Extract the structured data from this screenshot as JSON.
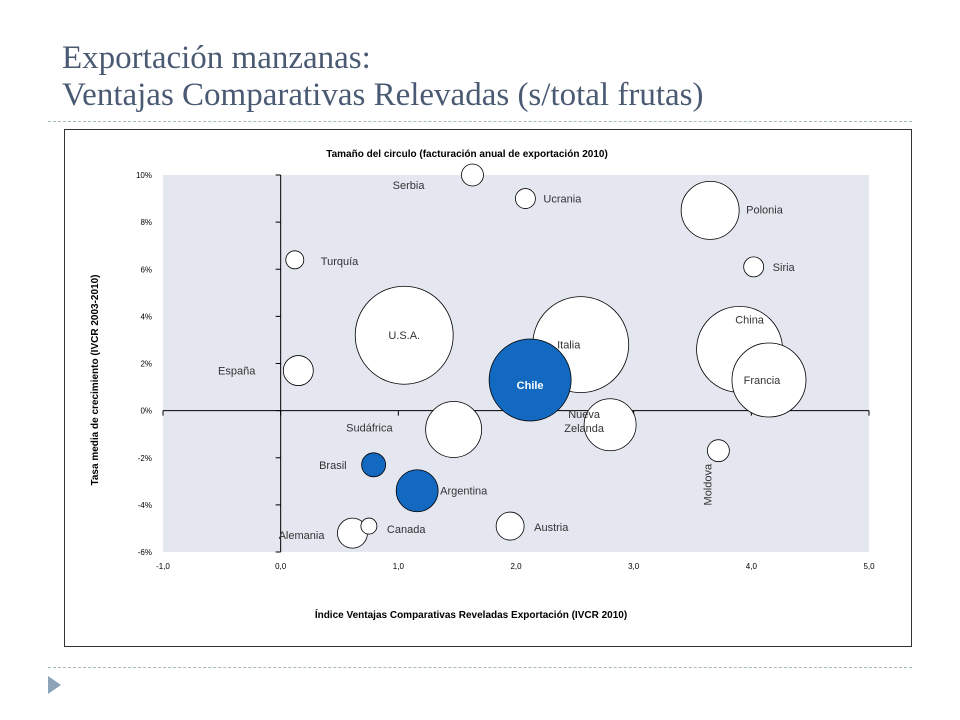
{
  "slide": {
    "title_line1": "Exportación manzanas:",
    "title_line2": "Ventajas Comparativas Relevadas (s/total frutas)"
  },
  "colors": {
    "title": "#4a5a73",
    "plot_background": "#e4e6f0",
    "bubble_default": "#ffffff",
    "bubble_highlight": "#1369c0",
    "divider": "#a8b8c0",
    "arrow": "#8ca3b8"
  },
  "chart_data": {
    "type": "scatter",
    "subtitle": "Tamaño del circulo (facturación anual de exportación 2010)",
    "xlabel": "Índice Ventajas Comparativas Reveladas Exportación (IVCR 2010)",
    "ylabel": "Tasa media de crecimiento  (IVCR 2003-2010)",
    "xlim": [
      -1,
      5
    ],
    "ylim": [
      -6,
      10
    ],
    "xticks": [
      -1,
      0,
      1,
      2,
      3,
      4,
      5
    ],
    "xtick_labels": [
      "-1,0",
      "0,0",
      "1,0",
      "2,0",
      "3,0",
      "4,0",
      "5,0"
    ],
    "yticks": [
      -6,
      -4,
      -2,
      0,
      2,
      4,
      6,
      8,
      10
    ],
    "ytick_labels": [
      "-6%",
      "-4%",
      "-2%",
      "0%",
      "2%",
      "4%",
      "6%",
      "8%",
      "10%"
    ],
    "grid": false,
    "points": [
      {
        "label": "Serbia",
        "x": 1.63,
        "y": 10.0,
        "size": 11,
        "highlight": false
      },
      {
        "label": "Ucrania",
        "x": 2.08,
        "y": 9.0,
        "size": 10,
        "highlight": false
      },
      {
        "label": "Polonia",
        "x": 3.65,
        "y": 8.5,
        "size": 29,
        "highlight": false
      },
      {
        "label": "Turquía",
        "x": 0.12,
        "y": 6.4,
        "size": 9,
        "highlight": false
      },
      {
        "label": "Siria",
        "x": 4.02,
        "y": 6.1,
        "size": 10,
        "highlight": false
      },
      {
        "label": "U.S.A.",
        "x": 1.05,
        "y": 3.2,
        "size": 49,
        "highlight": false
      },
      {
        "label": "Italia",
        "x": 2.55,
        "y": 2.8,
        "size": 48,
        "highlight": false
      },
      {
        "label": "China",
        "x": 3.9,
        "y": 2.6,
        "size": 43,
        "highlight": false
      },
      {
        "label": "Francia",
        "x": 4.15,
        "y": 1.3,
        "size": 37,
        "highlight": false
      },
      {
        "label": "España",
        "x": 0.15,
        "y": 1.7,
        "size": 15,
        "highlight": false
      },
      {
        "label": "Chile",
        "x": 2.12,
        "y": 1.3,
        "size": 41,
        "highlight": true
      },
      {
        "label": "Nueva\nZelanda",
        "x": 2.8,
        "y": -0.6,
        "size": 26,
        "highlight": false
      },
      {
        "label": "Sudáfrica",
        "x": 1.47,
        "y": -0.8,
        "size": 28,
        "highlight": false
      },
      {
        "label": "Moldova",
        "x": 3.72,
        "y": -1.7,
        "size": 11,
        "highlight": false
      },
      {
        "label": "Brasil",
        "x": 0.79,
        "y": -2.3,
        "size": 12,
        "highlight": true
      },
      {
        "label": "Argentina",
        "x": 1.16,
        "y": -3.4,
        "size": 21,
        "highlight": true
      },
      {
        "label": "Austria",
        "x": 1.95,
        "y": -4.9,
        "size": 14,
        "highlight": false
      },
      {
        "label": "Alemania",
        "x": 0.61,
        "y": -5.2,
        "size": 15,
        "highlight": false
      },
      {
        "label": "Canada",
        "x": 0.75,
        "y": -4.9,
        "size": 8,
        "highlight": false
      }
    ]
  }
}
